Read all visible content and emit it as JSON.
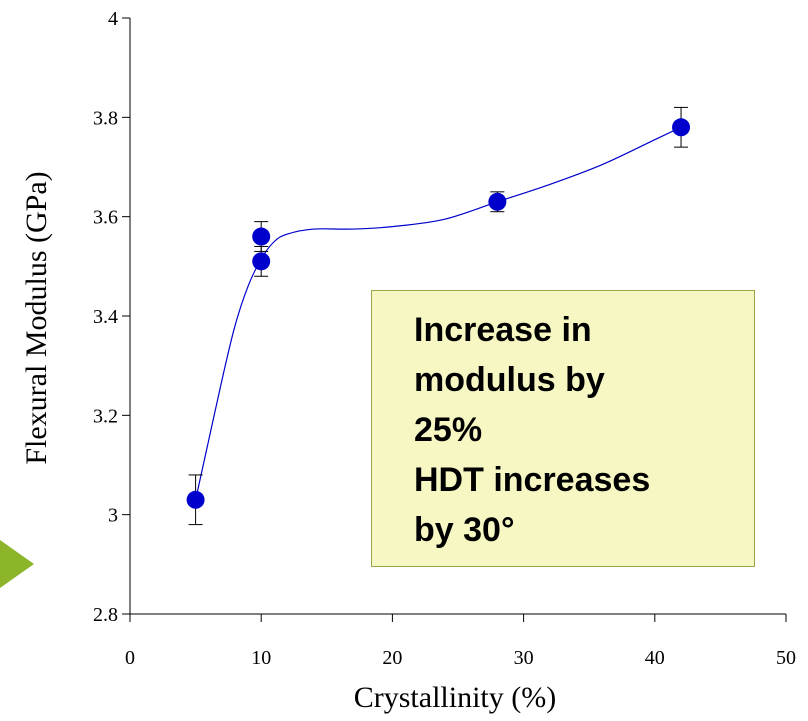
{
  "chart_data": {
    "type": "scatter",
    "xlabel": "Crystallinity (%)",
    "ylabel": "Flexural Modulus (GPa)",
    "xlim": [
      0,
      50
    ],
    "ylim": [
      2.8,
      4
    ],
    "xticks": [
      0,
      10,
      20,
      30,
      40,
      50
    ],
    "yticks": [
      2.8,
      3,
      3.2,
      3.4,
      3.6,
      3.8,
      4
    ],
    "xtick_labels": [
      "0",
      "10",
      "20",
      "30",
      "40",
      "50"
    ],
    "ytick_labels": [
      "2.8",
      "3",
      "3.2",
      "3.4",
      "3.6",
      "3.8",
      "4"
    ],
    "grid": false,
    "points": [
      {
        "x": 5,
        "y": 3.03,
        "err": 0.05
      },
      {
        "x": 10,
        "y": 3.56,
        "err": 0.03
      },
      {
        "x": 10,
        "y": 3.51,
        "err": 0.03
      },
      {
        "x": 28,
        "y": 3.63,
        "err": 0.02
      },
      {
        "x": 42,
        "y": 3.78,
        "err": 0.04
      }
    ],
    "fit_curve": [
      {
        "x": 5,
        "y": 3.03
      },
      {
        "x": 6,
        "y": 3.15
      },
      {
        "x": 7,
        "y": 3.27
      },
      {
        "x": 8,
        "y": 3.38
      },
      {
        "x": 9,
        "y": 3.46
      },
      {
        "x": 10,
        "y": 3.515
      },
      {
        "x": 11,
        "y": 3.55
      },
      {
        "x": 12,
        "y": 3.565
      },
      {
        "x": 14,
        "y": 3.575
      },
      {
        "x": 17,
        "y": 3.575
      },
      {
        "x": 20,
        "y": 3.58
      },
      {
        "x": 24,
        "y": 3.595
      },
      {
        "x": 28,
        "y": 3.63
      },
      {
        "x": 32,
        "y": 3.665
      },
      {
        "x": 36,
        "y": 3.705
      },
      {
        "x": 40,
        "y": 3.755
      },
      {
        "x": 42,
        "y": 3.78
      }
    ],
    "marker_color": "#0000cc",
    "curve_color": "#0000cc",
    "annotation": {
      "lines": [
        "Increase in",
        "modulus by",
        "25%",
        "HDT increases",
        "by 30°"
      ],
      "background": "#f6f7c2"
    }
  },
  "pointer_color": "#8db52a"
}
